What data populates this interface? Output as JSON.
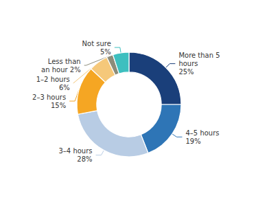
{
  "chart_data": {
    "type": "pie",
    "categories": [
      "More than 5\nhours\n25%",
      "4–5 hours\n19%",
      "3–4 hours\n28%",
      "2–3 hours\n15%",
      "1–2 hours\n6%",
      "Less than\nan hour 2%",
      "Not sure\n5%"
    ],
    "values": [
      25,
      19,
      28,
      15,
      6,
      2,
      5
    ],
    "colors": [
      "#1a3f7a",
      "#2e75b6",
      "#b8cce4",
      "#f5a623",
      "#f5c87a",
      "#8c8c7a",
      "#3dbfbf"
    ]
  }
}
